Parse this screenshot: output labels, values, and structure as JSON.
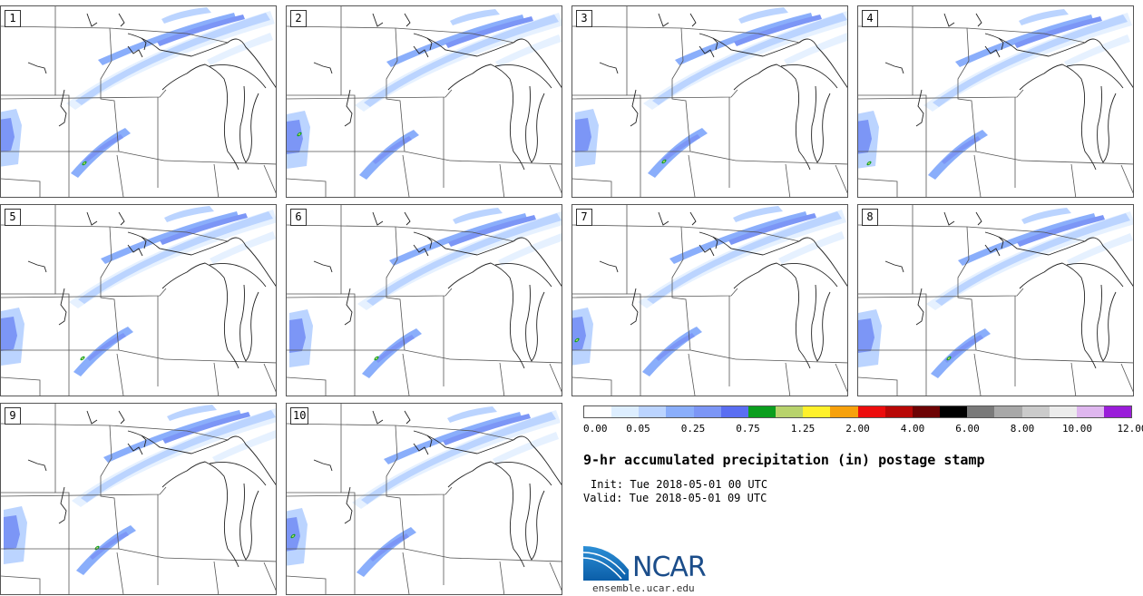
{
  "panels": [
    {
      "label": "1"
    },
    {
      "label": "2"
    },
    {
      "label": "3"
    },
    {
      "label": "4"
    },
    {
      "label": "5"
    },
    {
      "label": "6"
    },
    {
      "label": "7"
    },
    {
      "label": "8"
    },
    {
      "label": "9"
    },
    {
      "label": "10"
    }
  ],
  "colorbar": {
    "colors": [
      "#ffffff",
      "#ddeeff",
      "#bbd4ff",
      "#8aaefb",
      "#7c96f6",
      "#5a6ef2",
      "#0b9e1e",
      "#b8d36c",
      "#fff12b",
      "#f7a10c",
      "#ec0d0d",
      "#b80806",
      "#6d0304",
      "#000000",
      "#7a7a7a",
      "#a8a8a8",
      "#cbcbcb",
      "#ececec",
      "#dfb7ef",
      "#9a1dd9"
    ],
    "tick_labels": [
      "0.00",
      "0.05",
      "0.25",
      "0.75",
      "1.25",
      "2.00",
      "4.00",
      "6.00",
      "8.00",
      "10.00",
      "12.00"
    ]
  },
  "title": "9-hr accumulated precipitation (in) postage stamp",
  "init": "Init: Tue 2018-05-01 00 UTC",
  "valid": "Valid: Tue 2018-05-01 09 UTC",
  "logo": {
    "text": "NCAR",
    "url": "ensemble.ucar.edu"
  }
}
